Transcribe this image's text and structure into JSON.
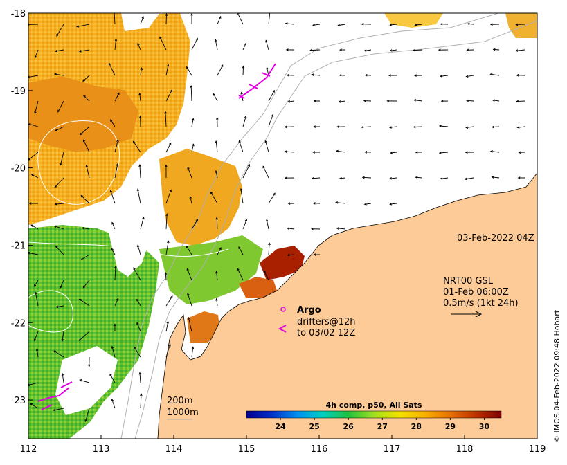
{
  "map": {
    "bounds": {
      "lon_min": 112,
      "lon_max": 119,
      "lat_min": -23.5,
      "lat_max": -18
    },
    "x_ticks": [
      "112",
      "113",
      "114",
      "115",
      "116",
      "117",
      "118",
      "119"
    ],
    "y_ticks": [
      "-18",
      "-19",
      "-20",
      "-21",
      "-22",
      "-23"
    ],
    "colors": {
      "land": "#fdcb98",
      "ocean_nodata": "#ffffff",
      "isobath": "#b0b0b0",
      "sst_contour": "#ffffff",
      "argo": "#e000e0"
    }
  },
  "labels": {
    "timestamp": "03-Feb-2022 04Z",
    "current_source": "NRT00 GSL",
    "current_time": "01-Feb 06:00Z",
    "current_scale": "0.5m/s (1kt 24h)",
    "argo_title": "Argo",
    "drifters_line1": "drifters@12h",
    "drifters_line2": "to 03/02 12Z",
    "isobath_200": "200m",
    "isobath_1000": "1000m",
    "credit": "© IMOS 04-Feb-2022 09:48 Hobart"
  },
  "colorbar": {
    "title": "4h comp, p50, All Sats",
    "range": [
      23,
      30.5
    ],
    "ticks": [
      "24",
      "25",
      "26",
      "27",
      "28",
      "29",
      "30"
    ],
    "stops": [
      "#00008f",
      "#0030c8",
      "#0090f0",
      "#00d0c0",
      "#20c040",
      "#a0e020",
      "#f0e000",
      "#f8b000",
      "#e87000",
      "#c03000",
      "#800000"
    ]
  },
  "icons": [
    "current-arrow-icon",
    "argo-float-icon",
    "drifter-track-icon"
  ]
}
